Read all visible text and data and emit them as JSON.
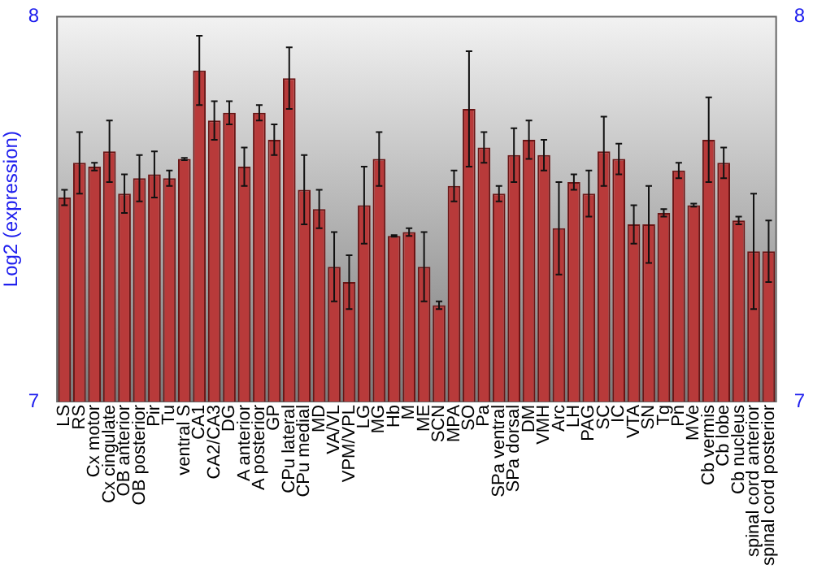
{
  "chart_data": {
    "type": "bar",
    "ylabel": "Log2 (expression)",
    "categories": [
      "LS",
      "RS",
      "Cx motor",
      "Cx cingulate",
      "OB anterior",
      "OB posterior",
      "Pir",
      "Tu",
      "ventral S",
      "CA1",
      "CA2/CA3",
      "DG",
      "A anterior",
      "A posterior",
      "GP",
      "CPu lateral",
      "CPu medial",
      "MD",
      "VA/VL",
      "VPM/VPL",
      "LG",
      "MG",
      "Hb",
      "M",
      "ME",
      "SCN",
      "MPA",
      "SO",
      "Pa",
      "SPa ventral",
      "SPa dorsal",
      "DM",
      "VMH",
      "Arc",
      "LH",
      "PAG",
      "SC",
      "IC",
      "VTA",
      "SN",
      "Tg",
      "Pn",
      "MVe",
      "Cb vermis",
      "Cb lobe",
      "Cb nucleus",
      "spinal cord anterior",
      "spinal cord posterior"
    ],
    "values": [
      7.53,
      7.62,
      7.61,
      7.65,
      7.54,
      7.58,
      7.59,
      7.58,
      7.63,
      7.86,
      7.73,
      7.75,
      7.61,
      7.75,
      7.68,
      7.84,
      7.55,
      7.5,
      7.35,
      7.31,
      7.51,
      7.63,
      7.43,
      7.44,
      7.35,
      7.25,
      7.56,
      7.76,
      7.66,
      7.54,
      7.64,
      7.68,
      7.64,
      7.45,
      7.57,
      7.54,
      7.65,
      7.63,
      7.46,
      7.46,
      7.49,
      7.6,
      7.51,
      7.68,
      7.62,
      7.47,
      7.39,
      7.39
    ],
    "errors": [
      0.02,
      0.08,
      0.01,
      0.08,
      0.05,
      0.06,
      0.06,
      0.02,
      0.003,
      0.09,
      0.05,
      0.03,
      0.05,
      0.02,
      0.04,
      0.08,
      0.09,
      0.05,
      0.09,
      0.07,
      0.1,
      0.07,
      0.002,
      0.01,
      0.09,
      0.01,
      0.04,
      0.15,
      0.04,
      0.02,
      0.07,
      0.05,
      0.04,
      0.12,
      0.02,
      0.06,
      0.09,
      0.04,
      0.05,
      0.1,
      0.01,
      0.02,
      0.004,
      0.11,
      0.04,
      0.01,
      0.15,
      0.08
    ],
    "color": "#b83a3a",
    "ylim": [
      7,
      8
    ],
    "yticks": [
      7,
      8
    ],
    "y2lim": [
      7,
      8
    ],
    "y2ticks": [
      7,
      8
    ],
    "grid": false,
    "legend": false
  }
}
